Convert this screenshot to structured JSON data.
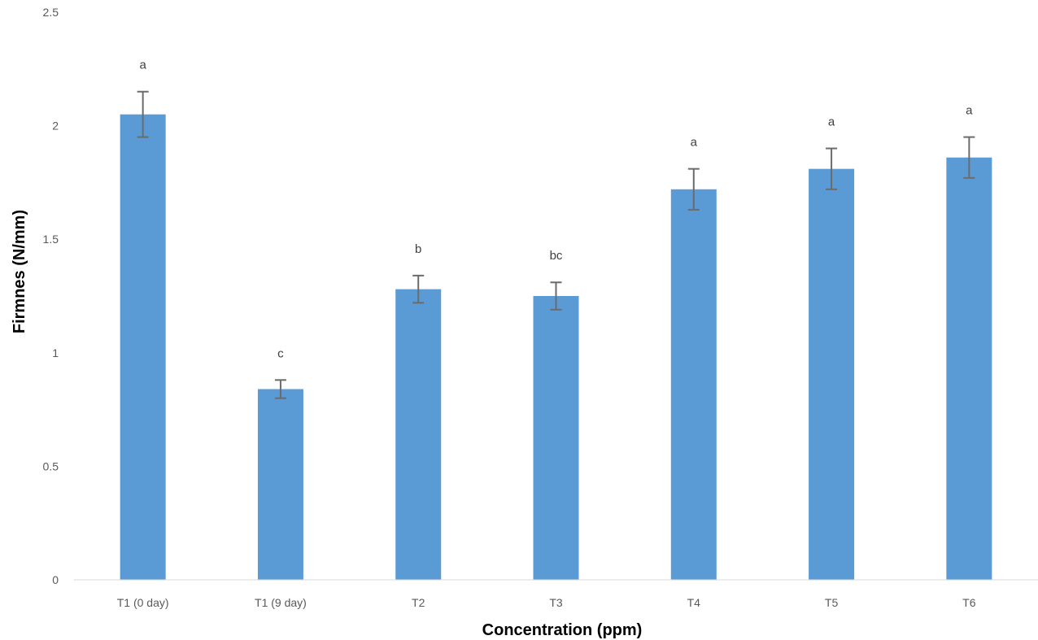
{
  "chart_data": {
    "type": "bar",
    "title": "",
    "xlabel": "Concentration (ppm)",
    "ylabel": "Firmnes (N/mm)",
    "ylim": [
      0,
      2.5
    ],
    "yticks": [
      "0",
      "0.5",
      "1",
      "1.5",
      "2",
      "2.5"
    ],
    "grid": false,
    "legend": "none",
    "bar_color": "#5b9bd5",
    "error_color": "#6b6b6b",
    "categories": [
      "T1 (0 day)",
      "T1 (9 day)",
      "T2",
      "T3",
      "T4",
      "T5",
      "T6"
    ],
    "values": [
      2.05,
      0.84,
      1.28,
      1.25,
      1.72,
      1.81,
      1.86
    ],
    "errors": [
      0.1,
      0.04,
      0.06,
      0.06,
      0.09,
      0.09,
      0.09
    ],
    "annotations": [
      "a",
      "c",
      "b",
      "bc",
      "a",
      "a",
      "a"
    ]
  }
}
